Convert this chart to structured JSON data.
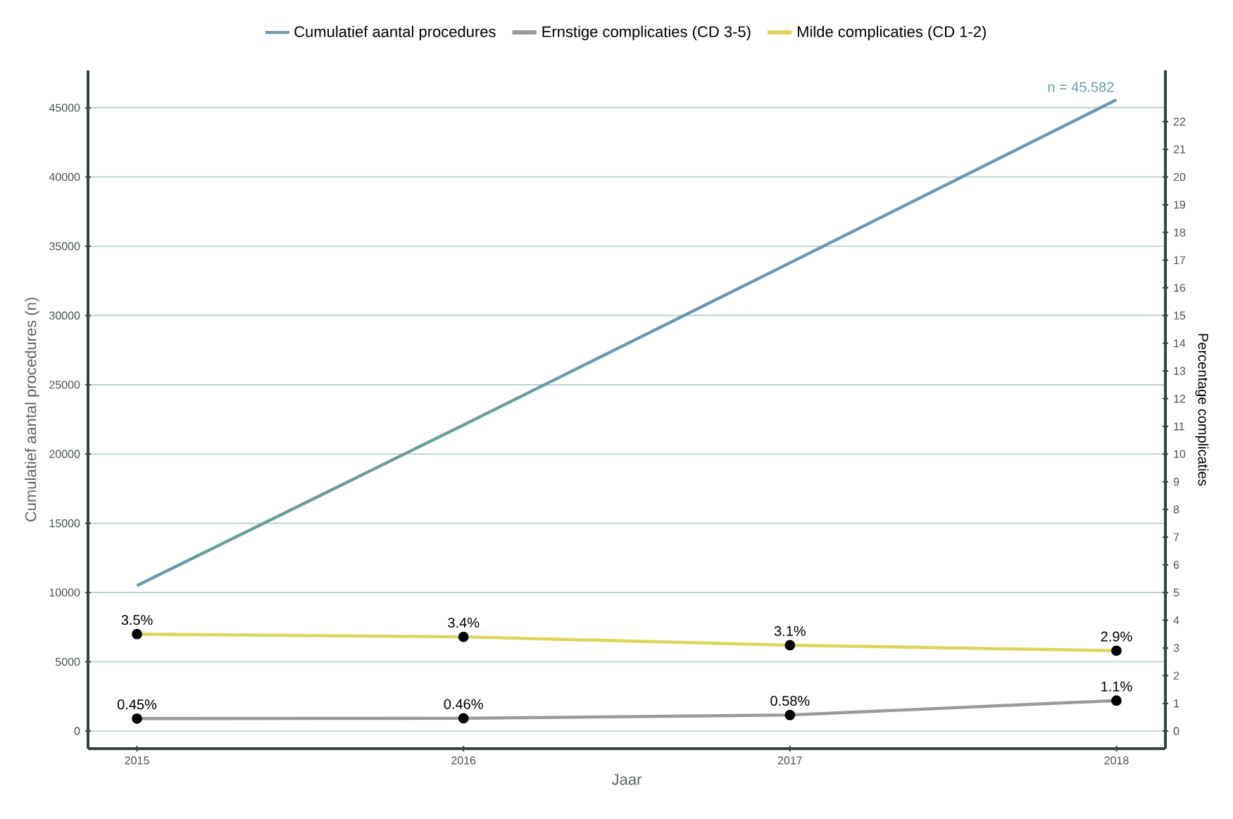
{
  "chart_data": {
    "type": "line",
    "xlabel": "Jaar",
    "ylabel": "Cumulatief aantal procedures (n)",
    "y2label": "Percentage complicaties",
    "x": [
      2015,
      2016,
      2017,
      2018
    ],
    "xlim": [
      2014.85,
      2018.15
    ],
    "xticks": [
      2015,
      2016,
      2017,
      2018
    ],
    "ylim": [
      -1270,
      47700
    ],
    "yticks": [
      0,
      5000,
      10000,
      15000,
      20000,
      25000,
      30000,
      35000,
      40000,
      45000
    ],
    "y2lim": [
      -0.635,
      23.85
    ],
    "y2ticks": [
      0,
      1,
      2,
      3,
      4,
      5,
      6,
      7,
      8,
      9,
      10,
      11,
      12,
      13,
      14,
      15,
      16,
      17,
      18,
      19,
      20,
      21,
      22
    ],
    "grid": "y",
    "legend": "top",
    "series": [
      {
        "name": "Cumulatief aantal procedures",
        "color": "#6b9ba8",
        "values": [
          10500,
          22100,
          33800,
          45582
        ],
        "marker": "none"
      },
      {
        "name": "Ernstige complicaties (CD 3-5)",
        "color": "#999999",
        "axis": "y2",
        "marker": "circle",
        "values": [
          0.45,
          0.46,
          0.58,
          1.1
        ],
        "value_labels": [
          "0.45%",
          "0.46%",
          "0.58%",
          "1.1%"
        ]
      },
      {
        "name": "Milde complicaties (CD 1-2)",
        "color": "#dcd55a",
        "axis": "y2",
        "marker": "circle",
        "values": [
          3.5,
          3.4,
          3.1,
          2.9
        ],
        "value_labels": [
          "3.5%",
          "3.4%",
          "3.1%",
          "2.9%"
        ]
      }
    ],
    "annotations": [
      {
        "text": "n = 45.582",
        "x": 2018,
        "y": 45582
      }
    ]
  }
}
